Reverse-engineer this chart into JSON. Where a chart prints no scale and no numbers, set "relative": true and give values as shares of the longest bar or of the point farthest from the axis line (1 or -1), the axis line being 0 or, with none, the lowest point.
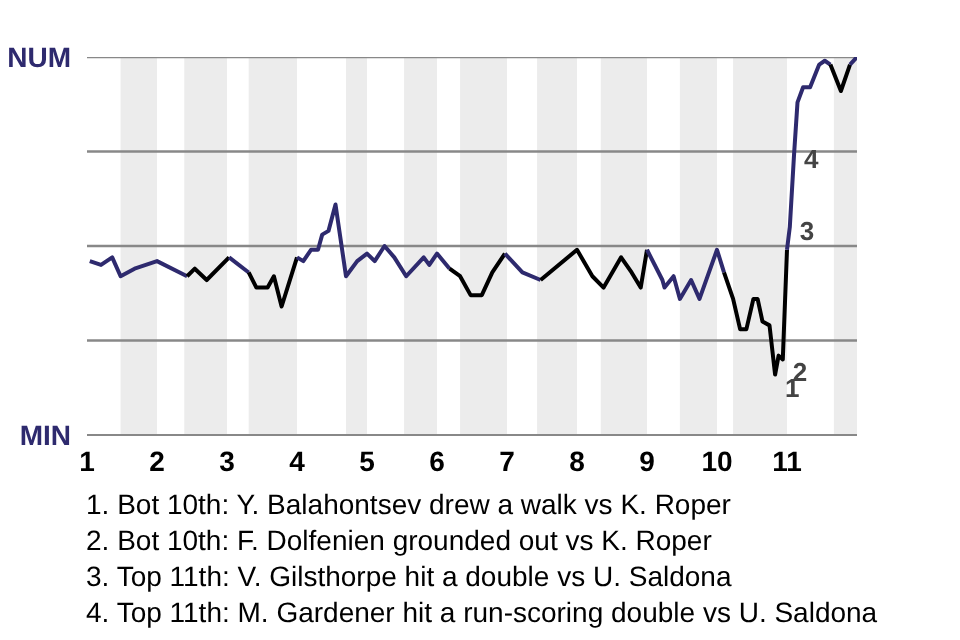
{
  "chart_data": {
    "type": "line",
    "relative": true,
    "xlim": [
      1,
      12
    ],
    "xticks": [
      1,
      2,
      3,
      4,
      5,
      6,
      7,
      8,
      9,
      10,
      11
    ],
    "grid": false,
    "marker": "none",
    "line_style": "solid",
    "series": [
      {
        "color": "#2e2a6e",
        "x": [
          1.04,
          1.2,
          1.36,
          1.48,
          1.68,
          2.0,
          2.43
        ],
        "values": [
          0.46,
          0.45,
          0.47,
          0.42,
          0.44,
          0.46,
          0.42
        ]
      },
      {
        "color": "#000000",
        "x": [
          2.43,
          2.54,
          2.71,
          3.03
        ],
        "values": [
          0.42,
          0.44,
          0.41,
          0.47
        ]
      },
      {
        "color": "#2e2a6e",
        "x": [
          3.03,
          3.31
        ],
        "values": [
          0.47,
          0.43
        ]
      },
      {
        "color": "#000000",
        "x": [
          3.31,
          3.42,
          3.58,
          3.67,
          3.78,
          4.0
        ],
        "values": [
          0.43,
          0.39,
          0.39,
          0.42,
          0.34,
          0.47
        ]
      },
      {
        "color": "#2e2a6e",
        "x": [
          4.0,
          4.09,
          4.2,
          4.3,
          4.36,
          4.45,
          4.55,
          4.7,
          4.86,
          5.0,
          5.11,
          5.25,
          5.39,
          5.56,
          5.81,
          5.89,
          6.0,
          6.18
        ],
        "values": [
          0.47,
          0.46,
          0.49,
          0.49,
          0.53,
          0.54,
          0.61,
          0.42,
          0.46,
          0.48,
          0.46,
          0.5,
          0.47,
          0.42,
          0.47,
          0.45,
          0.48,
          0.44
        ]
      },
      {
        "color": "#000000",
        "x": [
          6.18,
          6.33,
          6.48,
          6.64,
          6.79,
          6.97
        ],
        "values": [
          0.44,
          0.42,
          0.37,
          0.37,
          0.43,
          0.48
        ]
      },
      {
        "color": "#2e2a6e",
        "x": [
          6.97,
          7.22,
          7.48
        ],
        "values": [
          0.48,
          0.43,
          0.41
        ]
      },
      {
        "color": "#000000",
        "x": [
          7.48,
          8.0,
          8.22,
          8.38,
          8.63,
          8.78,
          8.91,
          9.0
        ],
        "values": [
          0.41,
          0.49,
          0.42,
          0.39,
          0.47,
          0.43,
          0.39,
          0.49
        ]
      },
      {
        "color": "#2e2a6e",
        "x": [
          9.0,
          9.22,
          9.25,
          9.38,
          9.47,
          9.63,
          9.75,
          10.0,
          10.1
        ],
        "values": [
          0.49,
          0.41,
          0.39,
          0.42,
          0.36,
          0.41,
          0.36,
          0.49,
          0.43
        ]
      },
      {
        "color": "#000000",
        "x": [
          10.1,
          10.23,
          10.33,
          10.42,
          10.52,
          10.58,
          10.65,
          10.75,
          10.83,
          10.88,
          10.94,
          11.0
        ],
        "values": [
          0.43,
          0.36,
          0.28,
          0.28,
          0.36,
          0.36,
          0.3,
          0.29,
          0.16,
          0.21,
          0.2,
          0.49
        ]
      },
      {
        "color": "#2e2a6e",
        "x": [
          11.0,
          11.04,
          11.1,
          11.15,
          11.23,
          11.33,
          11.46,
          11.54,
          11.62
        ],
        "values": [
          0.49,
          0.55,
          0.74,
          0.88,
          0.92,
          0.92,
          0.98,
          0.99,
          0.98
        ]
      },
      {
        "color": "#000000",
        "x": [
          11.62,
          11.77,
          11.9
        ],
        "values": [
          0.98,
          0.91,
          0.98
        ]
      },
      {
        "color": "#2e2a6e",
        "x": [
          11.9,
          12.0
        ],
        "values": [
          0.98,
          1.0
        ]
      }
    ],
    "ref_lines": [
      {
        "axis": "y",
        "value": 0.25,
        "color": "#888888"
      },
      {
        "axis": "y",
        "value": 0.5,
        "color": "#888888"
      },
      {
        "axis": "y",
        "value": 0.75,
        "color": "#888888"
      },
      {
        "axis": "y",
        "value": 1.0,
        "color": "#888888"
      }
    ],
    "bands": [
      {
        "axis": "x",
        "from": 1.48,
        "to": 2,
        "color": "#ececec"
      },
      {
        "axis": "x",
        "from": 2.39,
        "to": 3,
        "color": "#ececec"
      },
      {
        "axis": "x",
        "from": 3.31,
        "to": 4,
        "color": "#ececec"
      },
      {
        "axis": "x",
        "from": 4.7,
        "to": 5,
        "color": "#ececec"
      },
      {
        "axis": "x",
        "from": 5.53,
        "to": 6,
        "color": "#ececec"
      },
      {
        "axis": "x",
        "from": 6.33,
        "to": 7,
        "color": "#ececec"
      },
      {
        "axis": "x",
        "from": 7.43,
        "to": 8,
        "color": "#ececec"
      },
      {
        "axis": "x",
        "from": 8.34,
        "to": 9,
        "color": "#ececec"
      },
      {
        "axis": "x",
        "from": 9.47,
        "to": 10,
        "color": "#ececec"
      },
      {
        "axis": "x",
        "from": 10.23,
        "to": 11,
        "color": "#ececec"
      },
      {
        "axis": "x",
        "from": 11.67,
        "to": 12,
        "color": "#ececec"
      }
    ],
    "annotations": [
      "NUM",
      "MIN",
      {
        "text": "1",
        "x": 10.83,
        "y": 0.16
      },
      {
        "text": "2",
        "x": 10.94,
        "y": 0.2
      },
      {
        "text": "3",
        "x": 11.04,
        "y": 0.55
      },
      {
        "text": "4",
        "x": 11.1,
        "y": 0.74
      },
      "1. Bot 10th: Y. Balahontsev drew a walk vs K. Roper",
      "2. Bot 10th: F. Dolfenien grounded out vs K. Roper",
      "3. Top 11th: V. Gilsthorpe hit a double vs U. Saldona",
      "4. Top 11th: M. Gardener hit a run-scoring double vs U. Saldona"
    ]
  }
}
